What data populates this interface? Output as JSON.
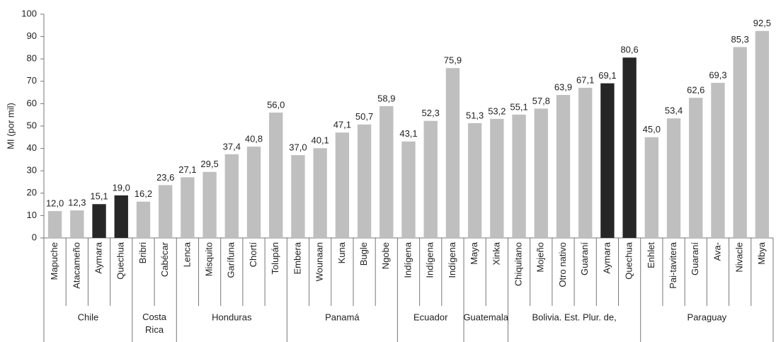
{
  "chart_data": {
    "type": "bar",
    "y_label": "MI (por mil)",
    "ylim": [
      0,
      100
    ],
    "yticks": [
      0,
      10,
      20,
      30,
      40,
      50,
      60,
      70,
      80,
      90,
      100
    ],
    "grid": false,
    "groups": [
      {
        "label": "Chile",
        "categories": [
          "Mapuche",
          "Atacameño",
          "Aymara",
          "Quechua"
        ],
        "values": [
          12.0,
          12.3,
          15.1,
          19.0
        ],
        "value_labels": [
          "12,0",
          "12,3",
          "15,1",
          "19,0"
        ],
        "colors": [
          "#bfbfbf",
          "#bfbfbf",
          "#262626",
          "#262626"
        ]
      },
      {
        "label": "Costa Rica",
        "categories": [
          "Bribri",
          "Cabécar"
        ],
        "values": [
          16.2,
          23.6
        ],
        "value_labels": [
          "16,2",
          "23,6"
        ],
        "colors": [
          "#bfbfbf",
          "#bfbfbf"
        ]
      },
      {
        "label": "Honduras",
        "categories": [
          "Lenca",
          "Misquito",
          "Garífuna",
          "Chortí",
          "Tolupán"
        ],
        "values": [
          27.1,
          29.5,
          37.4,
          40.8,
          56.0
        ],
        "value_labels": [
          "27,1",
          "29,5",
          "37,4",
          "40,8",
          "56,0"
        ],
        "colors": [
          "#bfbfbf",
          "#bfbfbf",
          "#bfbfbf",
          "#bfbfbf",
          "#bfbfbf"
        ]
      },
      {
        "label": "Panamá",
        "categories": [
          "Embera",
          "Wounaan",
          "Kuna",
          "Bugle",
          "Ngobe"
        ],
        "values": [
          37.0,
          40.1,
          47.1,
          50.7,
          58.9
        ],
        "value_labels": [
          "37,0",
          "40,1",
          "47,1",
          "50,7",
          "58,9"
        ],
        "colors": [
          "#bfbfbf",
          "#bfbfbf",
          "#bfbfbf",
          "#bfbfbf",
          "#bfbfbf"
        ]
      },
      {
        "label": "Ecuador",
        "categories": [
          "Indígena",
          "Indígena",
          "Indígena"
        ],
        "values": [
          43.1,
          52.3,
          75.9
        ],
        "value_labels": [
          "43,1",
          "52,3",
          "75,9"
        ],
        "colors": [
          "#bfbfbf",
          "#bfbfbf",
          "#bfbfbf"
        ]
      },
      {
        "label": "Guatemala",
        "categories": [
          "Maya",
          "Xinka"
        ],
        "values": [
          51.3,
          53.2
        ],
        "value_labels": [
          "51,3",
          "53,2"
        ],
        "colors": [
          "#bfbfbf",
          "#bfbfbf"
        ]
      },
      {
        "label": "Bolivia. Est. Plur. de,",
        "categories": [
          "Chiquitano",
          "Mojeño",
          "Otro nativo",
          "Guaraní",
          "Aymara",
          "Quechua"
        ],
        "values": [
          55.1,
          57.8,
          63.9,
          67.1,
          69.1,
          80.6
        ],
        "value_labels": [
          "55,1",
          "57,8",
          "63,9",
          "67,1",
          "69,1",
          "80,6"
        ],
        "colors": [
          "#bfbfbf",
          "#bfbfbf",
          "#bfbfbf",
          "#bfbfbf",
          "#262626",
          "#262626"
        ]
      },
      {
        "label": "Paraguay",
        "categories": [
          "Enhlet",
          "Pai-tavitera",
          "Guaraní",
          "Ava-",
          "Nivacle",
          "Mbya"
        ],
        "values": [
          45.0,
          53.4,
          62.6,
          69.3,
          85.3,
          92.5
        ],
        "value_labels": [
          "45,0",
          "53,4",
          "62,6",
          "69,3",
          "85,3",
          "92,5"
        ],
        "colors": [
          "#bfbfbf",
          "#bfbfbf",
          "#bfbfbf",
          "#bfbfbf",
          "#bfbfbf",
          "#bfbfbf"
        ]
      }
    ]
  }
}
